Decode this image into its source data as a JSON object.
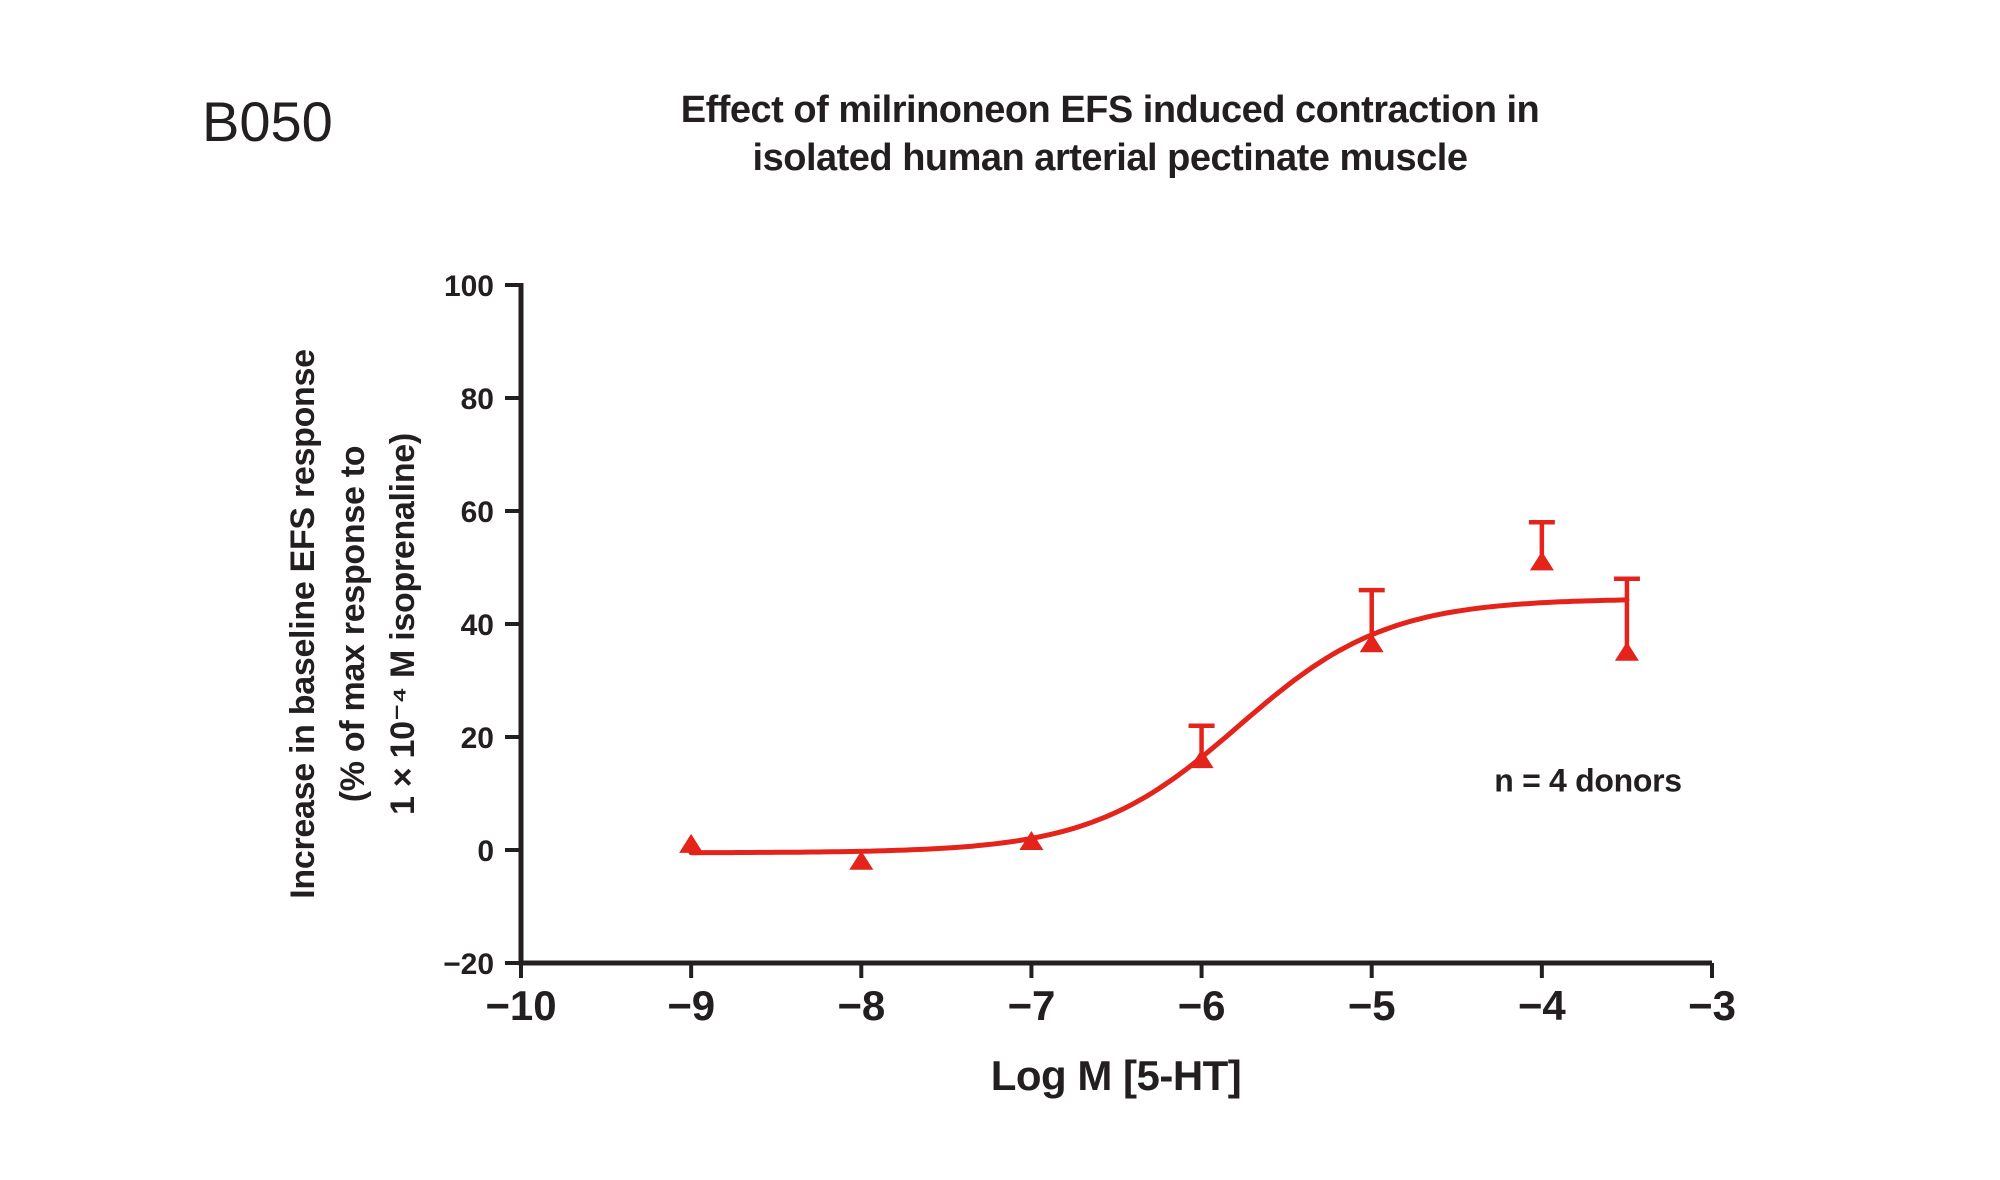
{
  "panel_label": "B050",
  "chart_data": {
    "type": "scatter",
    "title": "Effect of milrinoneon EFS induced contraction in isolated human arterial pectinate muscle",
    "title_lines": [
      "Effect of milrinoneon EFS induced contraction in",
      "isolated human arterial pectinate muscle"
    ],
    "xlabel": "Log M [5-HT]",
    "ylabel": "Increase in baseline EFS response (% of max response to 1 × 10⁻⁴ M isoprenaline)",
    "ylabel_lines": [
      "Increase in baseline EFS response",
      "(% of max response to",
      "1 × 10⁻⁴ M isoprenaline)"
    ],
    "annotation": "n = 4 donors",
    "xlim": [
      -10,
      -3
    ],
    "ylim": [
      -20,
      100
    ],
    "x_ticks": [
      -10,
      -9,
      -8,
      -7,
      -6,
      -5,
      -4,
      -3
    ],
    "y_ticks": [
      100,
      80,
      60,
      40,
      20,
      0,
      -20
    ],
    "grid": false,
    "legend": "none",
    "marker": "triangle-up",
    "points": [
      {
        "x": -9,
        "y": 1,
        "err_up": 0
      },
      {
        "x": -8,
        "y": -2,
        "err_up": 0
      },
      {
        "x": -7,
        "y": 1.5,
        "err_up": 0
      },
      {
        "x": -6,
        "y": 16,
        "err_up": 6
      },
      {
        "x": -5,
        "y": 36.5,
        "err_up": 9.5
      },
      {
        "x": -4,
        "y": 51,
        "err_up": 7
      },
      {
        "x": -3.5,
        "y": 35,
        "err_up": 13
      }
    ],
    "curve_fit": {
      "model": "sigmoid-4PL",
      "bottom": -0.5,
      "top": 44.5,
      "logEC50": -5.78,
      "hill": 1.0,
      "x_start": -9,
      "x_end": -3.5
    },
    "colors": {
      "series": "#e4231b",
      "axis": "#231f20",
      "background": "#ffffff"
    }
  }
}
